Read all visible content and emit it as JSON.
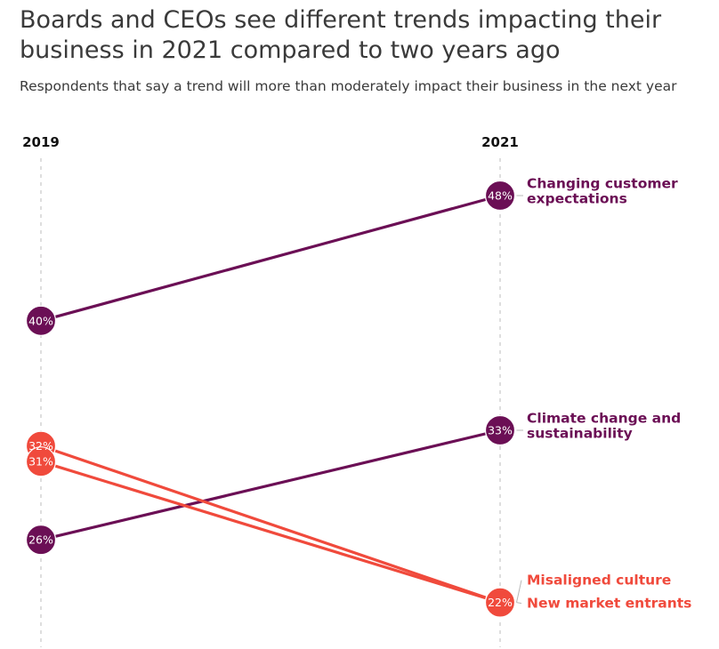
{
  "chart_data": {
    "type": "slope",
    "title": "Boards and CEOs see different trends impacting their business in 2021 compared to two years ago",
    "subtitle": "Respondents that say a trend will more than moderately impact their business in the next year",
    "x": [
      "2019",
      "2021"
    ],
    "unit": "%",
    "series": [
      {
        "name": "Changing customer expectations",
        "label_lines": [
          "Changing customer",
          "expectations"
        ],
        "values": [
          40,
          48
        ],
        "color": "#6b0f55"
      },
      {
        "name": "Climate change and sustainability",
        "label_lines": [
          "Climate change and",
          "sustainability"
        ],
        "values": [
          26,
          33
        ],
        "color": "#6b0f55"
      },
      {
        "name": "Misaligned culture",
        "label_lines": [
          "Misaligned culture"
        ],
        "values": [
          32,
          22
        ],
        "color": "#f04a3c"
      },
      {
        "name": "New market entrants",
        "label_lines": [
          "New market entrants"
        ],
        "values": [
          31,
          22
        ],
        "color": "#f04a3c"
      }
    ],
    "colors": {
      "purple": "#6b0f55",
      "red": "#f04a3c",
      "grid": "#cfcfcf"
    }
  }
}
